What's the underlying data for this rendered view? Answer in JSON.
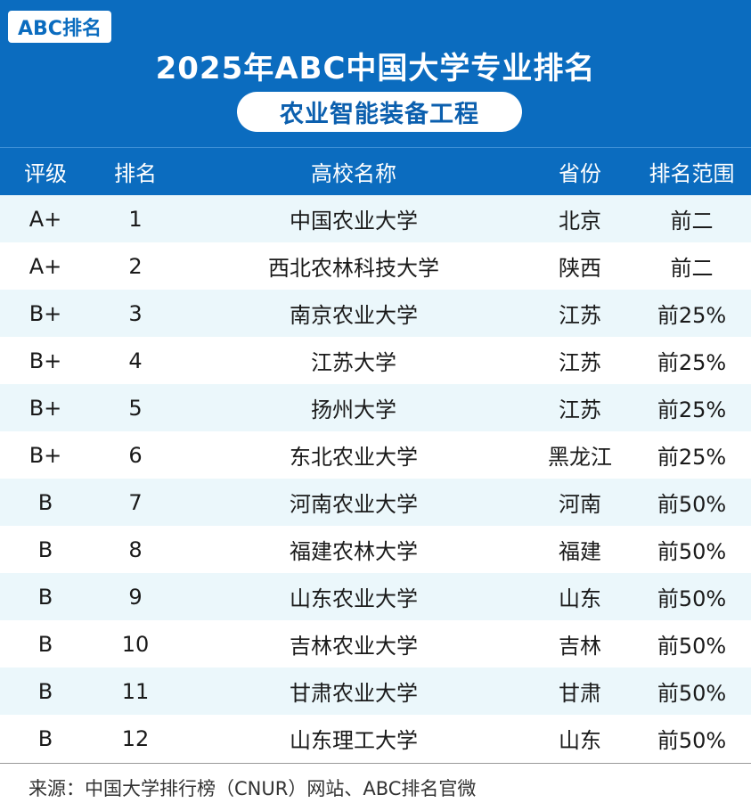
{
  "header": {
    "logo": "ABC排名",
    "title": "2025年ABC中国大学专业排名",
    "subtitle": "农业智能装备工程"
  },
  "columns": [
    "评级",
    "排名",
    "高校名称",
    "省份",
    "排名范围"
  ],
  "rows": [
    {
      "grade": "A+",
      "rank": "1",
      "school": "中国农业大学",
      "province": "北京",
      "range": "前二"
    },
    {
      "grade": "A+",
      "rank": "2",
      "school": "西北农林科技大学",
      "province": "陕西",
      "range": "前二"
    },
    {
      "grade": "B+",
      "rank": "3",
      "school": "南京农业大学",
      "province": "江苏",
      "range": "前25%"
    },
    {
      "grade": "B+",
      "rank": "4",
      "school": "江苏大学",
      "province": "江苏",
      "range": "前25%"
    },
    {
      "grade": "B+",
      "rank": "5",
      "school": "扬州大学",
      "province": "江苏",
      "range": "前25%"
    },
    {
      "grade": "B+",
      "rank": "6",
      "school": "东北农业大学",
      "province": "黑龙江",
      "range": "前25%"
    },
    {
      "grade": "B",
      "rank": "7",
      "school": "河南农业大学",
      "province": "河南",
      "range": "前50%"
    },
    {
      "grade": "B",
      "rank": "8",
      "school": "福建农林大学",
      "province": "福建",
      "range": "前50%"
    },
    {
      "grade": "B",
      "rank": "9",
      "school": "山东农业大学",
      "province": "山东",
      "range": "前50%"
    },
    {
      "grade": "B",
      "rank": "10",
      "school": "吉林农业大学",
      "province": "吉林",
      "range": "前50%"
    },
    {
      "grade": "B",
      "rank": "11",
      "school": "甘肃农业大学",
      "province": "甘肃",
      "range": "前50%"
    },
    {
      "grade": "B",
      "rank": "12",
      "school": "山东理工大学",
      "province": "山东",
      "range": "前50%"
    }
  ],
  "footer": {
    "source": "来源：中国大学排行榜（CNUR）网站、ABC排名官微"
  },
  "colors": {
    "header_bg": "#0b6cbf",
    "row_alt_bg": "#ebf7fb",
    "row_bg": "#ffffff"
  }
}
